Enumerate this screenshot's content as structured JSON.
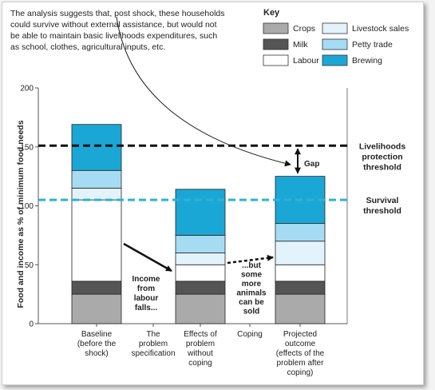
{
  "note": {
    "lines": [
      "The analysis suggests that, post shock, these households",
      "could survive without external assistance, but would not",
      "be able to maintain basic livelihoods expenditures, such",
      "as school, clothes, agricultural inputs, etc."
    ]
  },
  "chart_data": {
    "type": "bar",
    "stacked": true,
    "ylabel": "Food and income as % of minimum food needs",
    "ylim": [
      0,
      200
    ],
    "yticks": [
      0,
      50,
      100,
      150,
      200
    ],
    "categories": [
      [
        "Baseline",
        "(before the",
        "shock)"
      ],
      [
        "The",
        "problem",
        "specification"
      ],
      [
        "Effects of",
        "problem",
        "without",
        "coping"
      ],
      [
        "Coping"
      ],
      [
        "Projected",
        "outcome",
        "(effects of the",
        "problem after",
        "coping)"
      ]
    ],
    "legend_title": "Key",
    "series": [
      {
        "name": "Crops",
        "color": "#aaaaaa",
        "values": [
          25,
          null,
          25,
          null,
          25
        ]
      },
      {
        "name": "Milk",
        "color": "#555555",
        "values": [
          11,
          null,
          11,
          null,
          11
        ]
      },
      {
        "name": "Labour",
        "color": "#ffffff",
        "values": [
          69,
          null,
          14,
          null,
          14
        ]
      },
      {
        "name": "Livestock sales",
        "color": "#e3f3fb",
        "values": [
          10,
          null,
          10,
          null,
          20
        ]
      },
      {
        "name": "Petty trade",
        "color": "#a6dcf3",
        "values": [
          15,
          null,
          15,
          null,
          15
        ]
      },
      {
        "name": "Brewing",
        "color": "#1aa7d6",
        "values": [
          39,
          null,
          39,
          null,
          40
        ]
      }
    ],
    "thresholds": [
      {
        "value": 151,
        "label": [
          "Livelihoods",
          "protection",
          "threshold"
        ],
        "color": "#111111"
      },
      {
        "value": 105,
        "label": [
          "Survival",
          "threshold"
        ],
        "color": "#2cb3d3"
      }
    ],
    "annotations": [
      {
        "lines": [
          "Income",
          "from",
          "labour",
          "falls..."
        ]
      },
      {
        "lines": [
          "...but",
          "some",
          "more",
          "animals",
          "can be",
          "sold"
        ]
      },
      {
        "lines": [
          "Gap"
        ]
      }
    ]
  }
}
